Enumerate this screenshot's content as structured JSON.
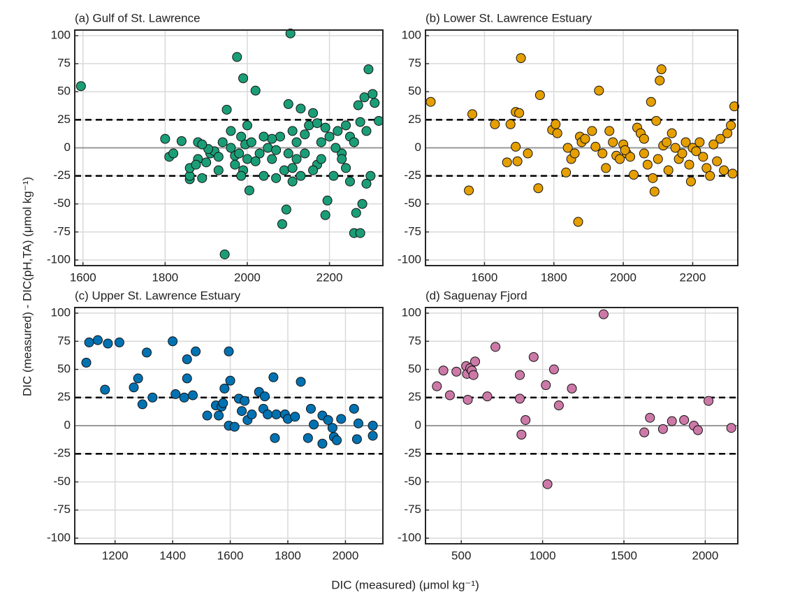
{
  "xlabel": "DIC (measured) (μmol kg⁻¹)",
  "ylabel": "DIC (measured) - DIC(pH,TA) (μmol kg⁻¹)",
  "chart_data": [
    {
      "type": "scatter",
      "title": "(a) Gulf of St. Lawrence",
      "color": "#1b9e77",
      "x": [
        1595,
        1800,
        1810,
        1820,
        1840,
        1860,
        1860,
        1860,
        1880,
        1880,
        1890,
        1900,
        1910,
        1920,
        1930,
        1940,
        1945,
        1950,
        1960,
        1970,
        1975,
        1980,
        1985,
        1990,
        1995,
        2000,
        2000,
        2005,
        2010,
        2020,
        2030,
        2040,
        2050,
        2060,
        2070,
        2080,
        2085,
        2090,
        2095,
        2100,
        2105,
        2110,
        2110,
        2120,
        2130,
        2140,
        2150,
        2160,
        2170,
        2180,
        2190,
        2195,
        2200,
        2210,
        2220,
        2230,
        2240,
        2250,
        2260,
        2265,
        2270,
        2275,
        2280,
        2285,
        2290,
        2295,
        2300,
        2305,
        2310,
        2320,
        2290,
        2250,
        2230,
        2215,
        2170,
        2130,
        2120,
        2100,
        2060,
        2040,
        1990,
        1970,
        1960,
        1930,
        1905,
        1890,
        2160,
        2180,
        2240,
        2260,
        2275,
        2190,
        2110,
        2140,
        2070,
        2020,
        1985,
        1875
      ],
      "values": [
        55,
        8,
        -8,
        -5,
        6,
        -28,
        -25,
        -18,
        5,
        -10,
        -27,
        -13,
        -5,
        -3,
        -20,
        5,
        -95,
        34,
        15,
        -7,
        81,
        -5,
        10,
        62,
        3,
        -10,
        20,
        -38,
        5,
        51,
        -5,
        -25,
        0,
        -10,
        -27,
        10,
        -68,
        -20,
        -55,
        39,
        102,
        -30,
        15,
        -10,
        35,
        -5,
        20,
        31,
        -15,
        5,
        -60,
        -47,
        10,
        -25,
        15,
        -5,
        20,
        -30,
        -76,
        -58,
        38,
        -76,
        -50,
        45,
        15,
        70,
        -25,
        48,
        40,
        24,
        -32,
        10,
        -10,
        0,
        22,
        -25,
        5,
        -5,
        8,
        10,
        -20,
        -15,
        0,
        -8,
        -1,
        3,
        -20,
        -10,
        -18,
        5,
        23,
        18,
        -18,
        12,
        -2,
        -12,
        -25,
        -15
      ],
      "xlim": [
        1580,
        2330
      ],
      "xticks": [
        1600,
        1800,
        2000,
        2200
      ],
      "ylim": [
        -105,
        105
      ],
      "yticks": [
        -100,
        -75,
        -50,
        -25,
        0,
        25,
        50,
        75,
        100
      ],
      "grid": true,
      "reference_lines": [
        {
          "y": 25,
          "style": "dashed"
        },
        {
          "y": -25,
          "style": "dashed"
        },
        {
          "y": 0,
          "style": "solid"
        }
      ]
    },
    {
      "type": "scatter",
      "title": "(b) Lower St. Lawrence Estuary",
      "color": "#e69f00",
      "x": [
        1445,
        1555,
        1565,
        1630,
        1665,
        1675,
        1690,
        1690,
        1695,
        1700,
        1705,
        1725,
        1755,
        1760,
        1795,
        1805,
        1810,
        1835,
        1840,
        1850,
        1860,
        1870,
        1875,
        1880,
        1890,
        1910,
        1920,
        1930,
        1940,
        1950,
        1960,
        1970,
        1980,
        1990,
        2000,
        2010,
        2020,
        2030,
        2040,
        2050,
        2060,
        2070,
        2080,
        2085,
        2090,
        2095,
        2100,
        2105,
        2110,
        2115,
        2130,
        2140,
        2150,
        2160,
        2170,
        2180,
        2190,
        2195,
        2200,
        2210,
        2220,
        2230,
        2240,
        2250,
        2260,
        2270,
        2280,
        2290,
        2300,
        2310,
        2320,
        2315,
        2125,
        2060,
        2005
      ],
      "values": [
        41,
        -38,
        30,
        21,
        -13,
        21,
        1,
        32,
        -12,
        31,
        80,
        -5,
        -36,
        47,
        16,
        21,
        13,
        -22,
        0,
        -10,
        -5,
        -66,
        10,
        5,
        8,
        15,
        1,
        51,
        -5,
        -18,
        15,
        5,
        -7,
        -10,
        3,
        -5,
        -8,
        -24,
        18,
        13,
        -5,
        -15,
        41,
        -27,
        -39,
        24,
        -10,
        60,
        70,
        2,
        -20,
        13,
        0,
        -10,
        -5,
        5,
        -15,
        -30,
        0,
        -3,
        5,
        -8,
        -18,
        -25,
        3,
        -12,
        8,
        -20,
        13,
        20,
        37,
        -23,
        5,
        8,
        -2
      ],
      "xlim": [
        1430,
        2330
      ],
      "xticks": [
        1600,
        1800,
        2000,
        2200
      ],
      "ylim": [
        -105,
        105
      ],
      "yticks": [
        -100,
        -75,
        -50,
        -25,
        0,
        25,
        50,
        75,
        100
      ],
      "grid": true,
      "reference_lines": [
        {
          "y": 25,
          "style": "dashed"
        },
        {
          "y": -25,
          "style": "dashed"
        },
        {
          "y": 0,
          "style": "solid"
        }
      ]
    },
    {
      "type": "scatter",
      "title": "(c) Upper St. Lawrence Estuary",
      "color": "#0072b2",
      "x": [
        1100,
        1110,
        1140,
        1165,
        1175,
        1215,
        1265,
        1280,
        1295,
        1310,
        1330,
        1400,
        1410,
        1440,
        1450,
        1450,
        1470,
        1480,
        1520,
        1550,
        1560,
        1570,
        1575,
        1580,
        1595,
        1595,
        1600,
        1615,
        1630,
        1640,
        1650,
        1660,
        1675,
        1700,
        1715,
        1720,
        1730,
        1750,
        1755,
        1760,
        1790,
        1800,
        1825,
        1845,
        1870,
        1880,
        1890,
        1920,
        1920,
        1940,
        1955,
        1960,
        1970,
        1985,
        2030,
        2040,
        2045,
        2095,
        2095
      ],
      "values": [
        56,
        74,
        76,
        32,
        73,
        74,
        34,
        42,
        19,
        65,
        25,
        75,
        28,
        25,
        59,
        42,
        27,
        66,
        9,
        18,
        9,
        17,
        20,
        33,
        0,
        66,
        40,
        -1,
        24,
        13,
        22,
        5,
        10,
        30,
        15,
        26,
        10,
        43,
        -11,
        10,
        10,
        6,
        8,
        39,
        -11,
        15,
        1,
        -16,
        9,
        5,
        -2,
        -10,
        -13,
        6,
        15,
        -12,
        2,
        0,
        -9
      ],
      "xlim": [
        1060,
        2130
      ],
      "xticks": [
        1200,
        1400,
        1600,
        1800,
        2000
      ],
      "ylim": [
        -105,
        105
      ],
      "yticks": [
        -100,
        -75,
        -50,
        -25,
        0,
        25,
        50,
        75,
        100
      ],
      "grid": true,
      "reference_lines": [
        {
          "y": 25,
          "style": "dashed"
        },
        {
          "y": -25,
          "style": "dashed"
        },
        {
          "y": 0,
          "style": "solid"
        }
      ]
    },
    {
      "type": "scatter",
      "title": "(d) Saguenay Fjord",
      "color": "#cc79a7",
      "x": [
        350,
        390,
        430,
        470,
        530,
        535,
        540,
        555,
        565,
        575,
        585,
        660,
        710,
        860,
        860,
        870,
        895,
        945,
        1020,
        1030,
        1070,
        1100,
        1180,
        1375,
        1625,
        1660,
        1740,
        1795,
        1870,
        1930,
        1955,
        2020,
        2160
      ],
      "values": [
        35,
        49,
        27,
        48,
        53,
        46,
        23,
        51,
        49,
        45,
        57,
        26,
        70,
        45,
        24,
        -8,
        5,
        61,
        36,
        -52,
        50,
        18,
        33,
        99,
        -6,
        7,
        -3,
        4,
        5,
        0,
        -4,
        22,
        -2
      ],
      "xlim": [
        280,
        2200
      ],
      "xticks": [
        500,
        1000,
        1500,
        2000
      ],
      "ylim": [
        -105,
        105
      ],
      "yticks": [
        -100,
        -75,
        -50,
        -25,
        0,
        25,
        50,
        75,
        100
      ],
      "grid": true,
      "reference_lines": [
        {
          "y": 25,
          "style": "dashed"
        },
        {
          "y": -25,
          "style": "dashed"
        },
        {
          "y": 0,
          "style": "solid"
        }
      ]
    }
  ]
}
